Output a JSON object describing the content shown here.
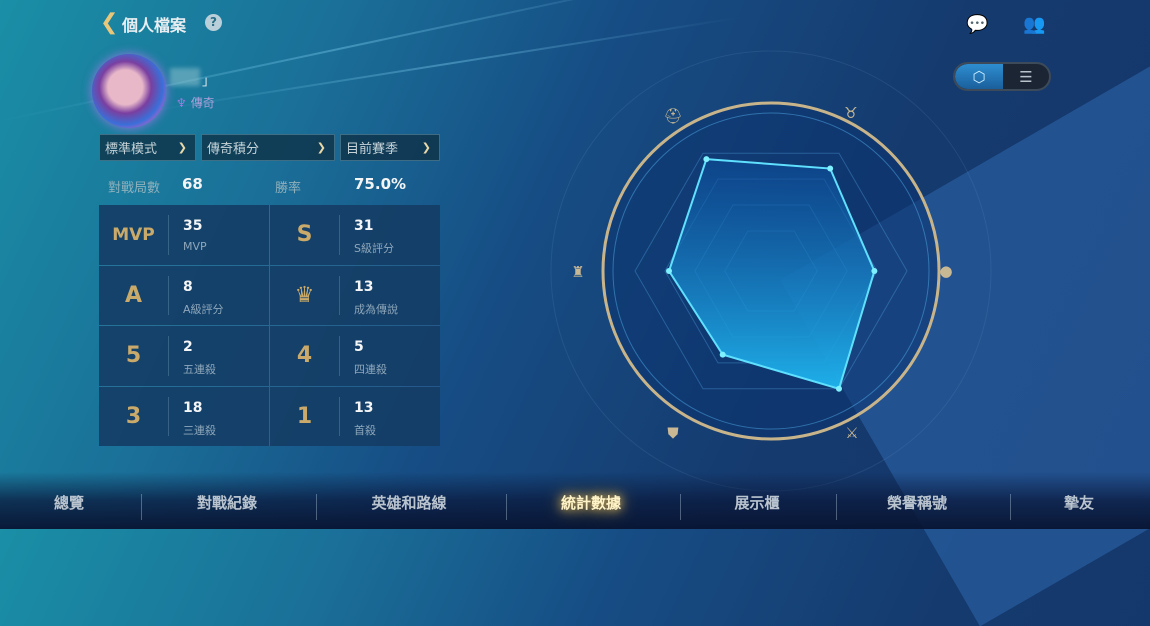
{
  "header": {
    "title": "個人檔案",
    "back_icon": "chevron-left-icon",
    "help_icon": "?"
  },
  "top_right": {
    "chat_icon": "chat-bubble-icon",
    "friends_icon": "friends-icon"
  },
  "profile": {
    "name_suffix": "」",
    "rank": "傳奇"
  },
  "filters": [
    {
      "label": "標準模式"
    },
    {
      "label": "傳奇積分"
    },
    {
      "label": "目前賽季"
    }
  ],
  "summary": {
    "matches_label": "對戰局數",
    "matches_value": "68",
    "winrate_label": "勝率",
    "winrate_value": "75.0%"
  },
  "stats": [
    {
      "icon": "MVP",
      "value": "35",
      "label": "MVP"
    },
    {
      "icon": "S",
      "value": "31",
      "label": "S級評分"
    },
    {
      "icon": "A",
      "value": "8",
      "label": "A級評分"
    },
    {
      "icon": "♛",
      "value": "13",
      "label": "成為傳說"
    },
    {
      "icon": "5",
      "value": "2",
      "label": "五連殺"
    },
    {
      "icon": "4",
      "value": "5",
      "label": "四連殺"
    },
    {
      "icon": "3",
      "value": "18",
      "label": "三連殺"
    },
    {
      "icon": "1",
      "value": "13",
      "label": "首殺"
    }
  ],
  "view_toggle": {
    "selected": "radar",
    "options": [
      "radar",
      "list"
    ]
  },
  "chart_data": {
    "type": "radar",
    "axes": [
      "top-left-helmet",
      "top-right-horned-helmet",
      "right-coin",
      "bottom-right-crossed-swords",
      "bottom-left-shield",
      "left-tower"
    ],
    "values": [
      0.95,
      0.87,
      0.76,
      1.0,
      0.71,
      0.75
    ],
    "range": [
      0,
      1
    ],
    "colors": {
      "fill": "#1fb6f0",
      "stroke": "#5fe0ff",
      "ring": "#c8b48a"
    }
  },
  "nav": {
    "items": [
      {
        "label": "總覽"
      },
      {
        "label": "對戰紀錄"
      },
      {
        "label": "英雄和路線"
      },
      {
        "label": "統計數據",
        "active": true
      },
      {
        "label": "展示櫃"
      },
      {
        "label": "榮譽稱號"
      },
      {
        "label": "摯友"
      }
    ]
  }
}
